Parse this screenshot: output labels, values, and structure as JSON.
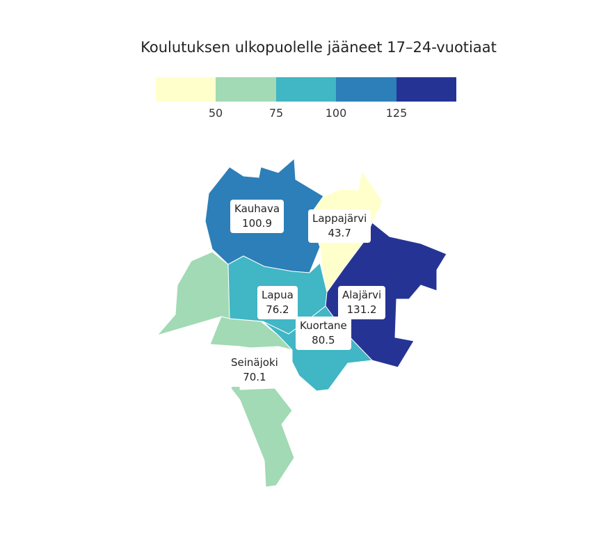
{
  "title": "Koulutuksen ulkopuolelle jääneet 17–24-vuotiaat",
  "legend": {
    "colors": [
      "#ffffcc",
      "#a1dab4",
      "#41b6c4",
      "#2c7fb8",
      "#253494"
    ],
    "breaks": [
      "50",
      "75",
      "100",
      "125"
    ]
  },
  "chart_data": {
    "type": "choropleth",
    "regions": [
      {
        "name": "Kauhava",
        "value": 100.9,
        "display": "100.9",
        "color": "#2c7fb8"
      },
      {
        "name": "Lappajärvi",
        "value": 43.7,
        "display": "43.7",
        "color": "#ffffcc"
      },
      {
        "name": "Lapua",
        "value": 76.2,
        "display": "76.2",
        "color": "#41b6c4"
      },
      {
        "name": "Alajärvi",
        "value": 131.2,
        "display": "131.2",
        "color": "#253494"
      },
      {
        "name": "Kuortane",
        "value": 80.5,
        "display": "80.5",
        "color": "#41b6c4"
      },
      {
        "name": "Seinäjoki",
        "value": 70.1,
        "display": "70.1",
        "color": "#a1dab4"
      }
    ]
  }
}
